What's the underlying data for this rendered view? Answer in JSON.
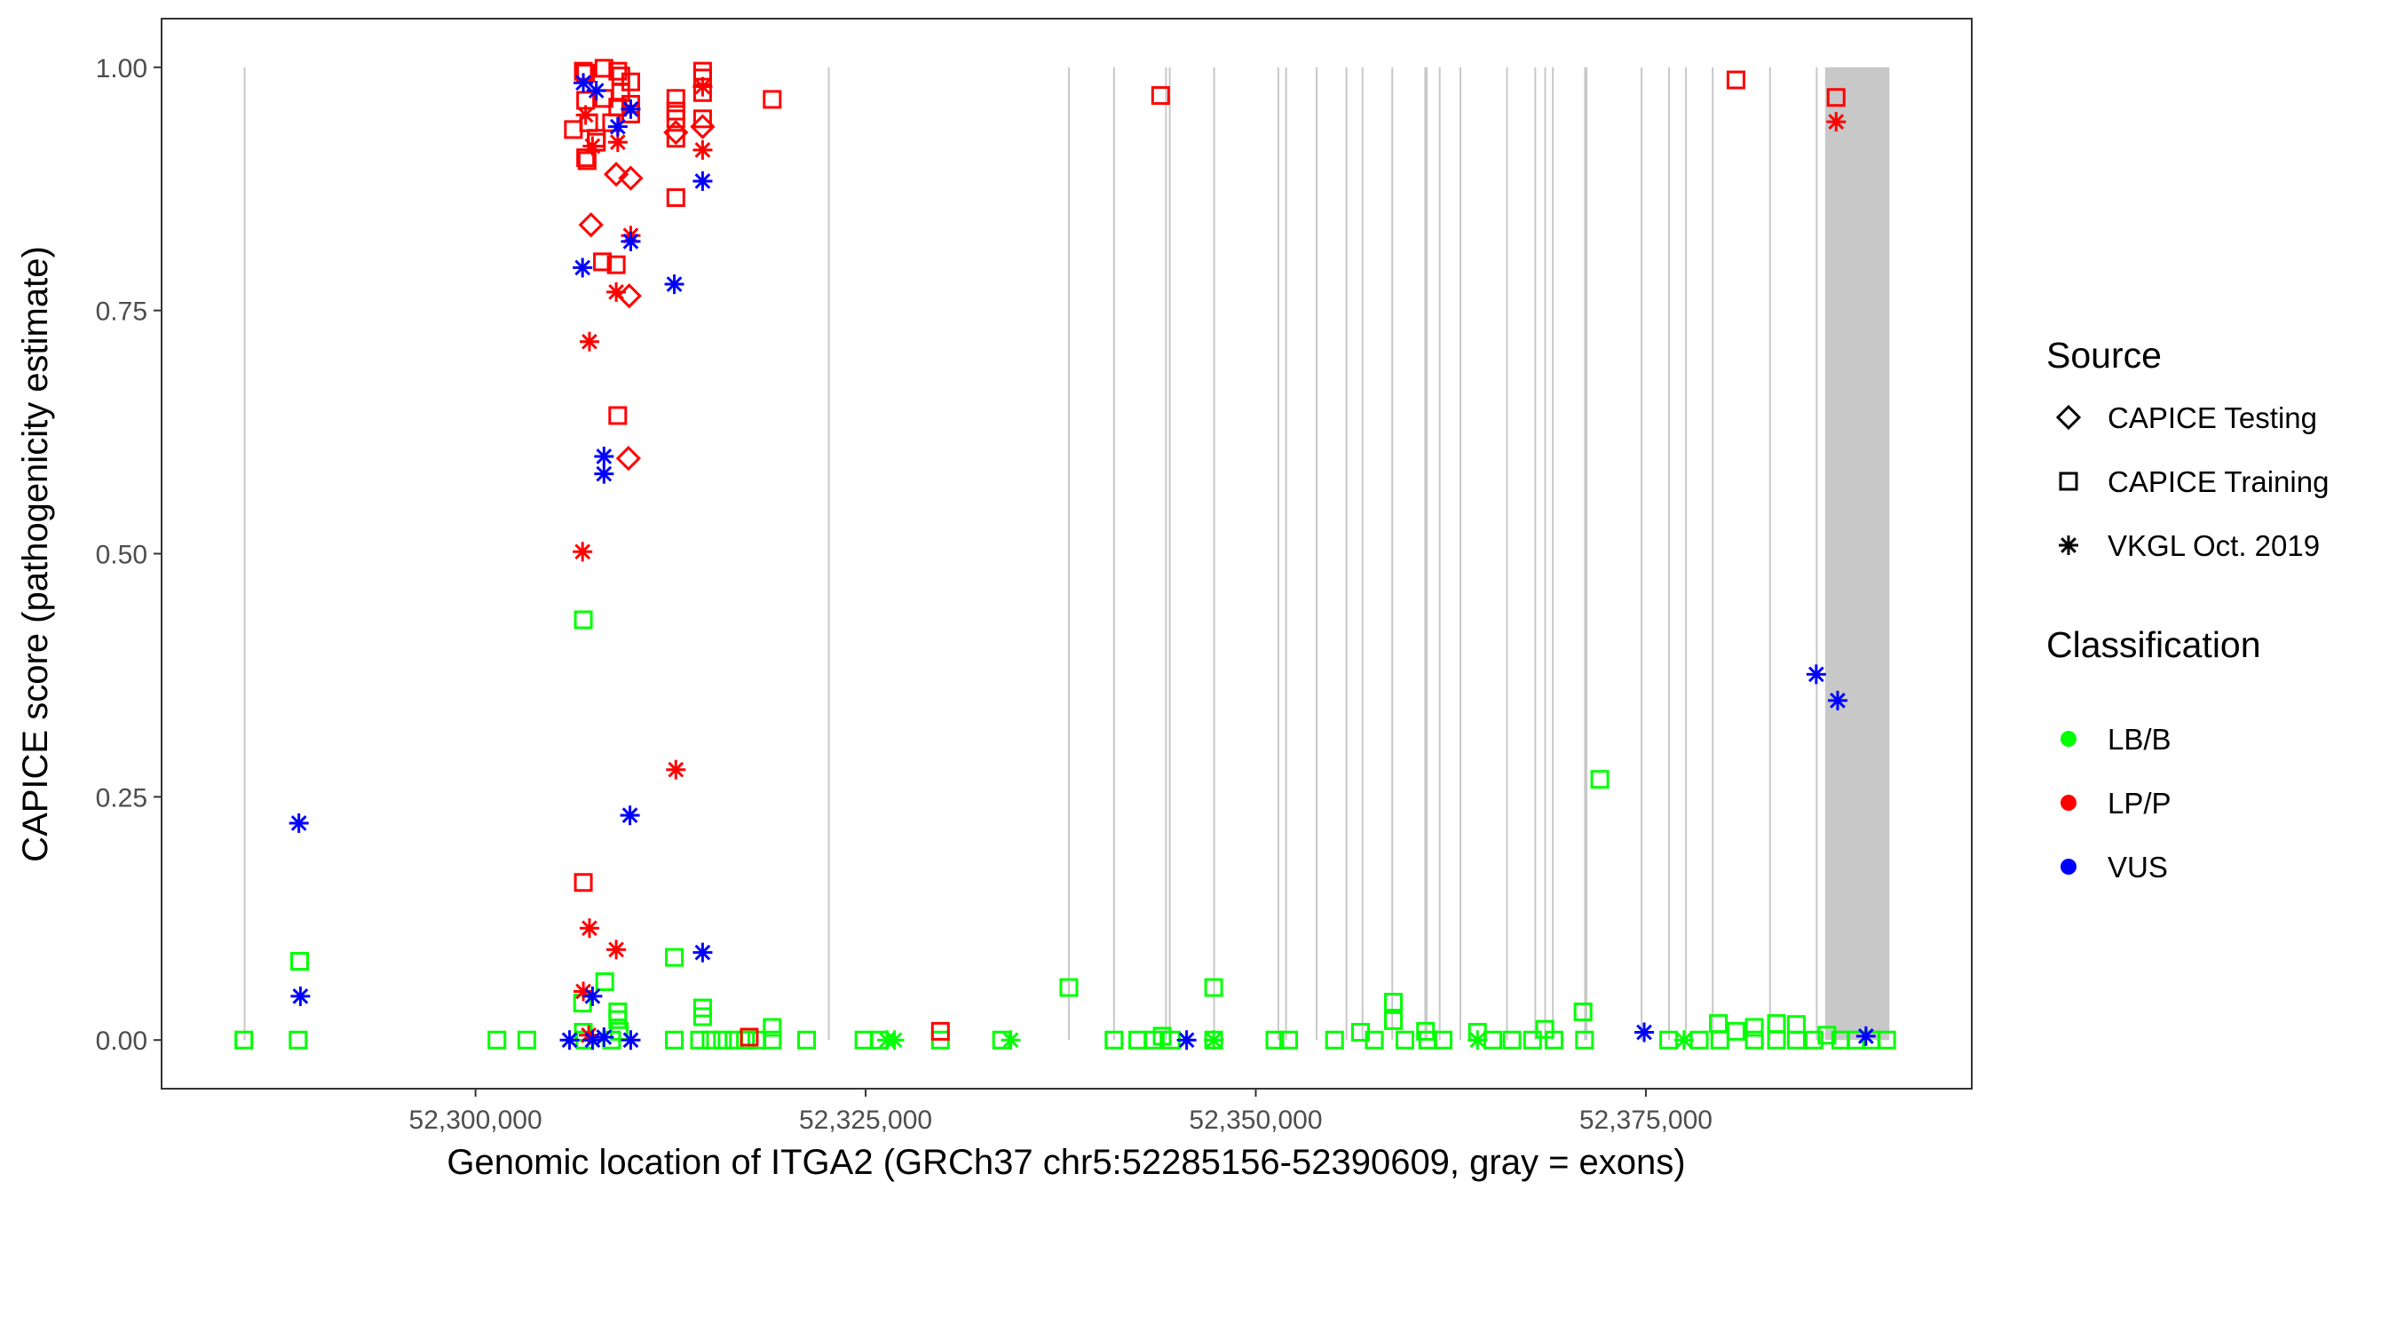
{
  "chart_data": {
    "type": "scatter",
    "xlabel": "Genomic location of ITGA2 (GRCh37 chr5:52285156-52390609, gray = exons)",
    "ylabel": "CAPICE score (pathogenicity estimate)",
    "xlim": [
      52279882,
      52395883
    ],
    "ylim": [
      -0.05,
      1.05
    ],
    "grid": false,
    "x_ticks": [
      52300000,
      52325000,
      52350000,
      52375000
    ],
    "x_tick_labels": [
      "52,300,000",
      "52,325,000",
      "52,350,000",
      "52,375,000"
    ],
    "y_ticks": [
      0,
      0.25,
      0.5,
      0.75,
      1.0
    ],
    "y_tick_labels": [
      "0.00",
      "0.25",
      "0.50",
      "0.75",
      "1.00"
    ],
    "exon_lines": [
      52285203,
      52322639,
      52338027,
      52340918,
      52344248,
      52344492,
      52347332,
      52351447,
      52351942,
      52353900,
      52355812,
      52356842,
      52358748,
      52360860,
      52360957,
      52361787,
      52363113,
      52366101,
      52367911,
      52368548,
      52369038,
      52371098,
      52371195,
      52374723,
      52376487,
      52377568,
      52379282,
      52382958,
      52385946
    ],
    "exon_band": [
      52386486,
      52390609
    ],
    "exon_color": "#c8c8c8",
    "legend_placement": "right",
    "legend": {
      "source_title": "Source",
      "sources": [
        {
          "name": "CAPICE Testing",
          "shape": "diamond"
        },
        {
          "name": "CAPICE Training",
          "shape": "square"
        },
        {
          "name": "VKGL Oct. 2019",
          "shape": "asterisk"
        }
      ],
      "class_title": "Classification",
      "classes": [
        {
          "name": "LB/B",
          "color": "#00ff00"
        },
        {
          "name": "LP/P",
          "color": "#ff0000"
        },
        {
          "name": "VUS",
          "color": "#0000ff"
        }
      ]
    },
    "point_fields": [
      "position",
      "score",
      "source_index",
      "class_index"
    ],
    "points": [
      [
        52285153,
        0,
        1,
        0
      ],
      [
        52288632,
        0,
        1,
        0
      ],
      [
        52288730,
        0.081,
        1,
        0
      ],
      [
        52306909,
        0.432,
        1,
        0
      ],
      [
        52308281,
        0.06,
        1,
        0
      ],
      [
        52306860,
        0.038,
        1,
        0
      ],
      [
        52309114,
        0.029,
        1,
        0
      ],
      [
        52309114,
        0.021,
        1,
        0
      ],
      [
        52312740,
        0.085,
        1,
        0
      ],
      [
        52314553,
        0.033,
        1,
        0
      ],
      [
        52314553,
        0.024,
        1,
        0
      ],
      [
        52306909,
        0.008,
        1,
        0
      ],
      [
        52301372,
        0,
        1,
        0
      ],
      [
        52303283,
        0,
        1,
        0
      ],
      [
        52307007,
        0,
        1,
        0
      ],
      [
        52308722,
        0,
        1,
        0
      ],
      [
        52309212,
        0.009,
        1,
        0
      ],
      [
        52312740,
        0,
        1,
        0
      ],
      [
        52314357,
        0,
        1,
        0
      ],
      [
        52315092,
        0,
        1,
        0
      ],
      [
        52315827,
        0,
        1,
        0
      ],
      [
        52316562,
        0,
        1,
        0
      ],
      [
        52317297,
        0,
        1,
        0
      ],
      [
        52318032,
        0,
        1,
        0
      ],
      [
        52319012,
        0.013,
        1,
        0
      ],
      [
        52319012,
        0,
        1,
        0
      ],
      [
        52321217,
        0,
        1,
        0
      ],
      [
        52324892,
        0,
        1,
        0
      ],
      [
        52325872,
        0,
        1,
        0
      ],
      [
        52329792,
        0,
        1,
        0
      ],
      [
        52333712,
        0,
        1,
        0
      ],
      [
        52338024,
        0.054,
        1,
        0
      ],
      [
        52340915,
        0,
        1,
        0
      ],
      [
        52342434,
        0,
        1,
        0
      ],
      [
        52343414,
        0,
        1,
        0
      ],
      [
        52344002,
        0.004,
        1,
        0
      ],
      [
        52344590,
        0,
        1,
        0
      ],
      [
        52326362,
        0,
        2,
        0
      ],
      [
        52326852,
        0,
        2,
        0
      ],
      [
        52334300,
        0,
        2,
        0
      ],
      [
        52347305,
        0.054,
        1,
        0
      ],
      [
        52347305,
        0,
        1,
        0
      ],
      [
        52351225,
        0,
        1,
        0
      ],
      [
        52352107,
        0,
        1,
        0
      ],
      [
        52355047,
        0,
        1,
        0
      ],
      [
        52356713,
        0.008,
        1,
        0
      ],
      [
        52357595,
        0,
        1,
        0
      ],
      [
        52358820,
        0.039,
        1,
        0
      ],
      [
        52358820,
        0.02,
        1,
        0
      ],
      [
        52359555,
        0,
        1,
        0
      ],
      [
        52360878,
        0.009,
        1,
        0
      ],
      [
        52361025,
        0,
        1,
        0
      ],
      [
        52362005,
        0,
        1,
        0
      ],
      [
        52364210,
        0.008,
        1,
        0
      ],
      [
        52365190,
        0,
        1,
        0
      ],
      [
        52366415,
        0,
        1,
        0
      ],
      [
        52367738,
        0,
        1,
        0
      ],
      [
        52368522,
        0.011,
        1,
        0
      ],
      [
        52369110,
        0,
        1,
        0
      ],
      [
        52370972,
        0.029,
        1,
        0
      ],
      [
        52371070,
        0,
        1,
        0
      ],
      [
        52372050,
        0.268,
        1,
        0
      ],
      [
        52376460,
        0,
        1,
        0
      ],
      [
        52378420,
        0,
        1,
        0
      ],
      [
        52379645,
        0.017,
        1,
        0
      ],
      [
        52379743,
        0,
        1,
        0
      ],
      [
        52380772,
        0.009,
        1,
        0
      ],
      [
        52381948,
        0.013,
        1,
        0
      ],
      [
        52381948,
        0,
        1,
        0
      ],
      [
        52383369,
        0.017,
        1,
        0
      ],
      [
        52383369,
        0,
        1,
        0
      ],
      [
        52384643,
        0.016,
        1,
        0
      ],
      [
        52384643,
        0,
        1,
        0
      ],
      [
        52385770,
        0,
        1,
        0
      ],
      [
        52386603,
        0.005,
        1,
        0
      ],
      [
        52387485,
        0,
        1,
        0
      ],
      [
        52388465,
        0,
        1,
        0
      ],
      [
        52389445,
        0,
        1,
        0
      ],
      [
        52390425,
        0,
        1,
        0
      ],
      [
        52347305,
        0,
        2,
        0
      ],
      [
        52364210,
        0,
        2,
        0
      ],
      [
        52377440,
        0,
        2,
        0
      ],
      [
        52306909,
        0.996,
        1,
        1
      ],
      [
        52307056,
        0.994,
        1,
        1
      ],
      [
        52308232,
        0.999,
        1,
        1
      ],
      [
        52309114,
        0.996,
        1,
        1
      ],
      [
        52309310,
        0.991,
        1,
        1
      ],
      [
        52309947,
        0.985,
        1,
        1
      ],
      [
        52307056,
        0.966,
        1,
        1
      ],
      [
        52308232,
        0.968,
        1,
        1
      ],
      [
        52309310,
        0.974,
        1,
        1
      ],
      [
        52309947,
        0.962,
        1,
        1
      ],
      [
        52306272,
        0.936,
        1,
        1
      ],
      [
        52307252,
        0.943,
        1,
        1
      ],
      [
        52307742,
        0.927,
        1,
        1
      ],
      [
        52308722,
        0.943,
        1,
        1
      ],
      [
        52309114,
        0.959,
        1,
        1
      ],
      [
        52309947,
        0.952,
        1,
        1
      ],
      [
        52307056,
        0.907,
        1,
        1
      ],
      [
        52307154,
        0.904,
        1,
        1
      ],
      [
        52307742,
        0.923,
        1,
        1
      ],
      [
        52308134,
        0.8,
        1,
        1
      ],
      [
        52309016,
        0.797,
        1,
        1
      ],
      [
        52309114,
        0.642,
        1,
        1
      ],
      [
        52306909,
        0.162,
        1,
        1
      ],
      [
        52312838,
        0.968,
        1,
        1
      ],
      [
        52312838,
        0.955,
        1,
        1
      ],
      [
        52312838,
        0.947,
        1,
        1
      ],
      [
        52312838,
        0.927,
        1,
        1
      ],
      [
        52312838,
        0.866,
        1,
        1
      ],
      [
        52314553,
        0.996,
        1,
        1
      ],
      [
        52314553,
        0.989,
        1,
        1
      ],
      [
        52314553,
        0.974,
        1,
        1
      ],
      [
        52314553,
        0.947,
        1,
        1
      ],
      [
        52319012,
        0.967,
        1,
        1
      ],
      [
        52329792,
        0.009,
        1,
        1
      ],
      [
        52317542,
        0.003,
        1,
        1
      ],
      [
        52343904,
        0.971,
        1,
        1
      ],
      [
        52380772,
        0.987,
        1,
        1
      ],
      [
        52387191,
        0.969,
        1,
        1
      ],
      [
        52307399,
        0.838,
        0,
        1
      ],
      [
        52309016,
        0.89,
        0,
        1
      ],
      [
        52309947,
        0.886,
        0,
        1
      ],
      [
        52309849,
        0.765,
        0,
        1
      ],
      [
        52309800,
        0.598,
        0,
        1
      ],
      [
        52312838,
        0.933,
        0,
        1
      ],
      [
        52314553,
        0.939,
        0,
        1
      ],
      [
        52307056,
        0.951,
        2,
        1
      ],
      [
        52307497,
        0.919,
        2,
        1
      ],
      [
        52309114,
        0.923,
        2,
        1
      ],
      [
        52309947,
        0.827,
        2,
        1
      ],
      [
        52309016,
        0.769,
        2,
        1
      ],
      [
        52307301,
        0.718,
        2,
        1
      ],
      [
        52306860,
        0.502,
        2,
        1
      ],
      [
        52312838,
        0.278,
        2,
        1
      ],
      [
        52307301,
        0.115,
        2,
        1
      ],
      [
        52309016,
        0.093,
        2,
        1
      ],
      [
        52306909,
        0.05,
        2,
        1
      ],
      [
        52314553,
        0.915,
        2,
        1
      ],
      [
        52314553,
        0.98,
        2,
        1
      ],
      [
        52307252,
        0.005,
        2,
        1
      ],
      [
        52387191,
        0.944,
        2,
        1
      ],
      [
        52306909,
        0.984,
        2,
        2
      ],
      [
        52307742,
        0.976,
        2,
        2
      ],
      [
        52309114,
        0.939,
        2,
        2
      ],
      [
        52309947,
        0.957,
        2,
        2
      ],
      [
        52309947,
        0.821,
        2,
        2
      ],
      [
        52306860,
        0.794,
        2,
        2
      ],
      [
        52312740,
        0.777,
        2,
        2
      ],
      [
        52308232,
        0.6,
        2,
        2
      ],
      [
        52308232,
        0.582,
        2,
        2
      ],
      [
        52314553,
        0.883,
        2,
        2
      ],
      [
        52309898,
        0.231,
        2,
        2
      ],
      [
        52288681,
        0.223,
        2,
        2
      ],
      [
        52288779,
        0.045,
        2,
        2
      ],
      [
        52314553,
        0.09,
        2,
        2
      ],
      [
        52307497,
        0.045,
        2,
        2
      ],
      [
        52306027,
        0,
        2,
        2
      ],
      [
        52307497,
        0,
        2,
        2
      ],
      [
        52308232,
        0.003,
        2,
        2
      ],
      [
        52309947,
        0,
        2,
        2
      ],
      [
        52345570,
        0,
        2,
        2
      ],
      [
        52374892,
        0.008,
        2,
        2
      ],
      [
        52385917,
        0.376,
        2,
        2
      ],
      [
        52387289,
        0.349,
        2,
        2
      ],
      [
        52389102,
        0.004,
        2,
        2
      ]
    ]
  }
}
